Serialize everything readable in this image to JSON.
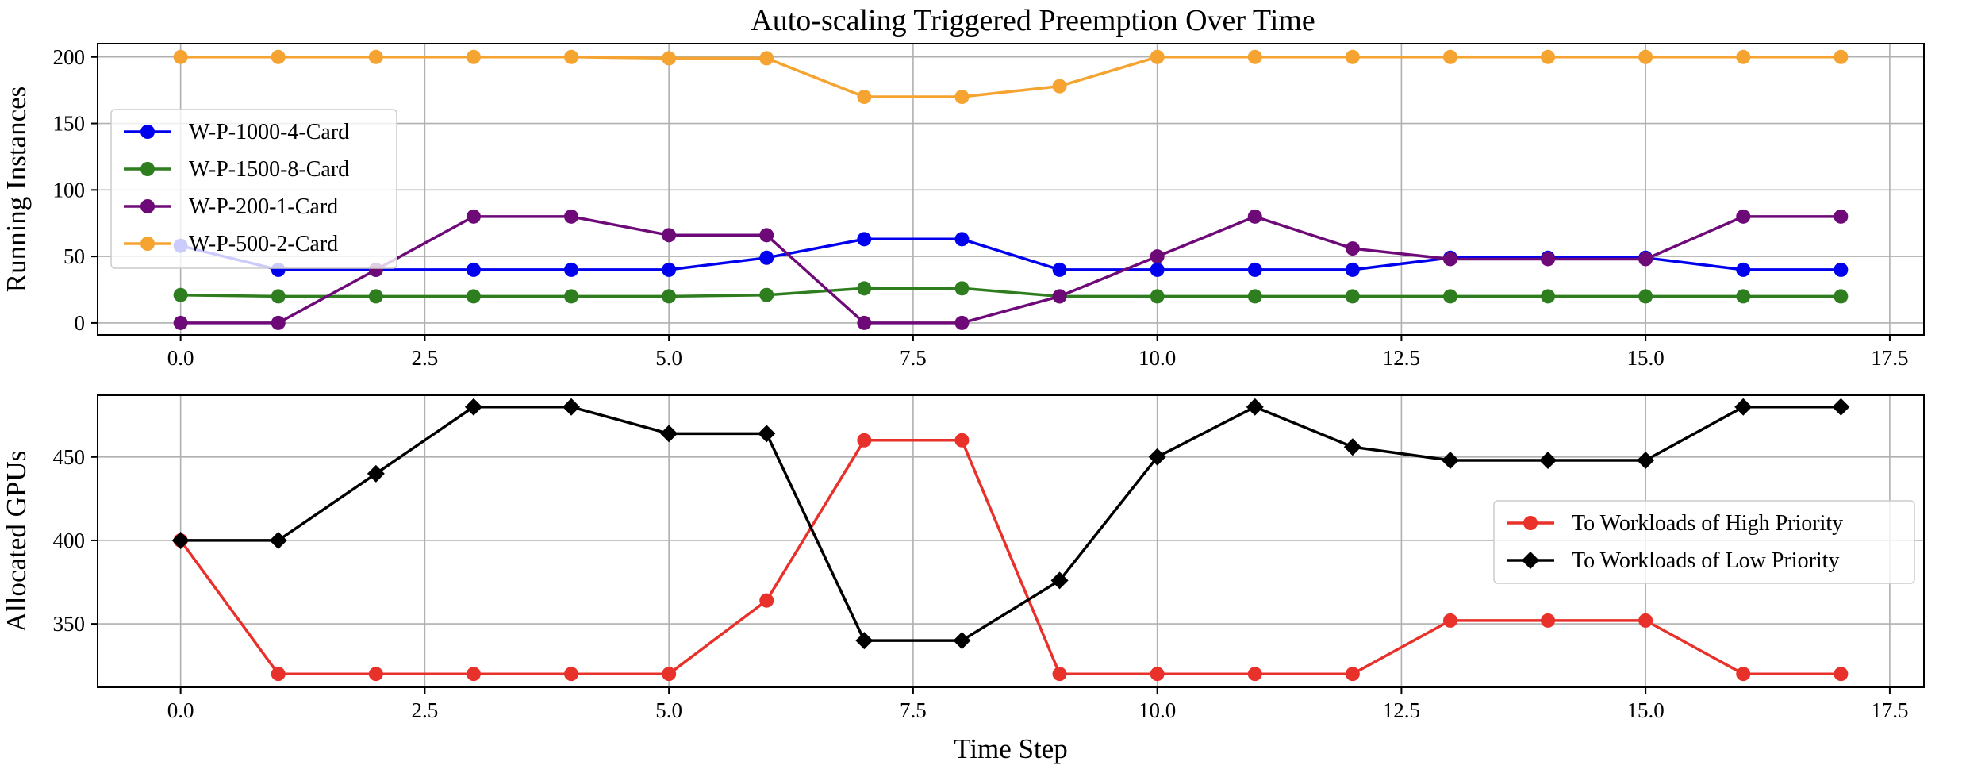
{
  "chart_data": [
    {
      "type": "line",
      "title": "Auto-scaling Triggered Preemption Over Time",
      "xlabel": "",
      "ylabel": "Running Instances",
      "xlim": [
        -0.85,
        17.85
      ],
      "ylim": [
        -9,
        210
      ],
      "xticks": [
        0.0,
        2.5,
        5.0,
        7.5,
        10.0,
        12.5,
        15.0,
        17.5
      ],
      "xtick_labels": [
        "0.0",
        "2.5",
        "5.0",
        "7.5",
        "10.0",
        "12.5",
        "15.0",
        "17.5"
      ],
      "yticks": [
        0,
        50,
        100,
        150,
        200
      ],
      "ytick_labels": [
        "0",
        "50",
        "100",
        "150",
        "200"
      ],
      "grid": true,
      "legend_position": "center-left",
      "x": [
        0,
        1,
        2,
        3,
        4,
        5,
        6,
        7,
        8,
        9,
        10,
        11,
        12,
        13,
        14,
        15,
        16,
        17
      ],
      "series": [
        {
          "name": "W-P-1000-4-Card",
          "color": "#0000ee",
          "marker": "circle",
          "values": [
            58,
            40,
            40,
            40,
            40,
            40,
            49,
            63,
            63,
            40,
            40,
            40,
            40,
            49,
            49,
            49,
            40,
            40
          ]
        },
        {
          "name": "W-P-1500-8-Card",
          "color": "#2e7d1e",
          "marker": "circle",
          "values": [
            21,
            20,
            20,
            20,
            20,
            20,
            21,
            26,
            26,
            20,
            20,
            20,
            20,
            20,
            20,
            20,
            20,
            20
          ]
        },
        {
          "name": "W-P-200-1-Card",
          "color": "#6e0a78",
          "marker": "circle",
          "values": [
            0,
            0,
            40,
            80,
            80,
            66,
            66,
            0,
            0,
            20,
            50,
            80,
            56,
            48,
            48,
            48,
            80,
            80
          ]
        },
        {
          "name": "W-P-500-2-Card",
          "color": "#f5a431",
          "marker": "circle",
          "values": [
            200,
            200,
            200,
            200,
            200,
            199,
            199,
            170,
            170,
            178,
            200,
            200,
            200,
            200,
            200,
            200,
            200,
            200
          ]
        }
      ]
    },
    {
      "type": "line",
      "title": "",
      "xlabel": "Time Step",
      "ylabel": "Allocated GPUs",
      "xlim": [
        -0.85,
        17.85
      ],
      "ylim": [
        312,
        487
      ],
      "xticks": [
        0.0,
        2.5,
        5.0,
        7.5,
        10.0,
        12.5,
        15.0,
        17.5
      ],
      "xtick_labels": [
        "0.0",
        "2.5",
        "5.0",
        "7.5",
        "10.0",
        "12.5",
        "15.0",
        "17.5"
      ],
      "yticks": [
        350,
        400,
        450
      ],
      "ytick_labels": [
        "350",
        "400",
        "450"
      ],
      "grid": true,
      "legend_position": "center-right",
      "x": [
        0,
        1,
        2,
        3,
        4,
        5,
        6,
        7,
        8,
        9,
        10,
        11,
        12,
        13,
        14,
        15,
        16,
        17
      ],
      "series": [
        {
          "name": "To Workloads of High Priority",
          "color": "#e8312a",
          "marker": "circle",
          "values": [
            400,
            320,
            320,
            320,
            320,
            320,
            364,
            460,
            460,
            320,
            320,
            320,
            320,
            352,
            352,
            352,
            320,
            320
          ]
        },
        {
          "name": "To Workloads of Low Priority",
          "color": "#000000",
          "marker": "diamond",
          "values": [
            400,
            400,
            440,
            480,
            480,
            464,
            464,
            340,
            340,
            376,
            450,
            480,
            456,
            448,
            448,
            448,
            480,
            480
          ]
        }
      ]
    }
  ]
}
